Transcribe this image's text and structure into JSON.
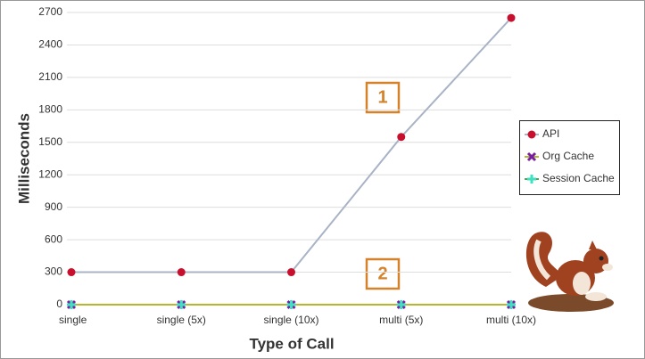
{
  "chart_data": {
    "type": "line",
    "x_label": "Type of Call",
    "y_label": "Milliseconds",
    "categories": [
      "single",
      "single (5x)",
      "single (10x)",
      "multi (5x)",
      "multi (10x)"
    ],
    "series": [
      {
        "name": "API",
        "color": "#c8102e",
        "line_color": "#a9b3c6",
        "marker": "circle",
        "values": [
          300,
          300,
          300,
          1550,
          2650
        ]
      },
      {
        "name": "Org Cache",
        "color": "#7b1fa2",
        "line_color": "#b5b82a",
        "marker": "x",
        "values": [
          0,
          0,
          0,
          0,
          0
        ]
      },
      {
        "name": "Session Cache",
        "color": "#40e0c0",
        "line_color": "#5aa05a",
        "marker": "plus",
        "values": [
          0,
          0,
          0,
          0,
          0
        ]
      }
    ],
    "ylim": [
      0,
      2700
    ],
    "yticks": [
      0,
      300,
      600,
      900,
      1200,
      1500,
      1800,
      2100,
      2400,
      2700
    ],
    "grid": true,
    "legend": "right",
    "annotations": [
      "1",
      "2"
    ]
  }
}
